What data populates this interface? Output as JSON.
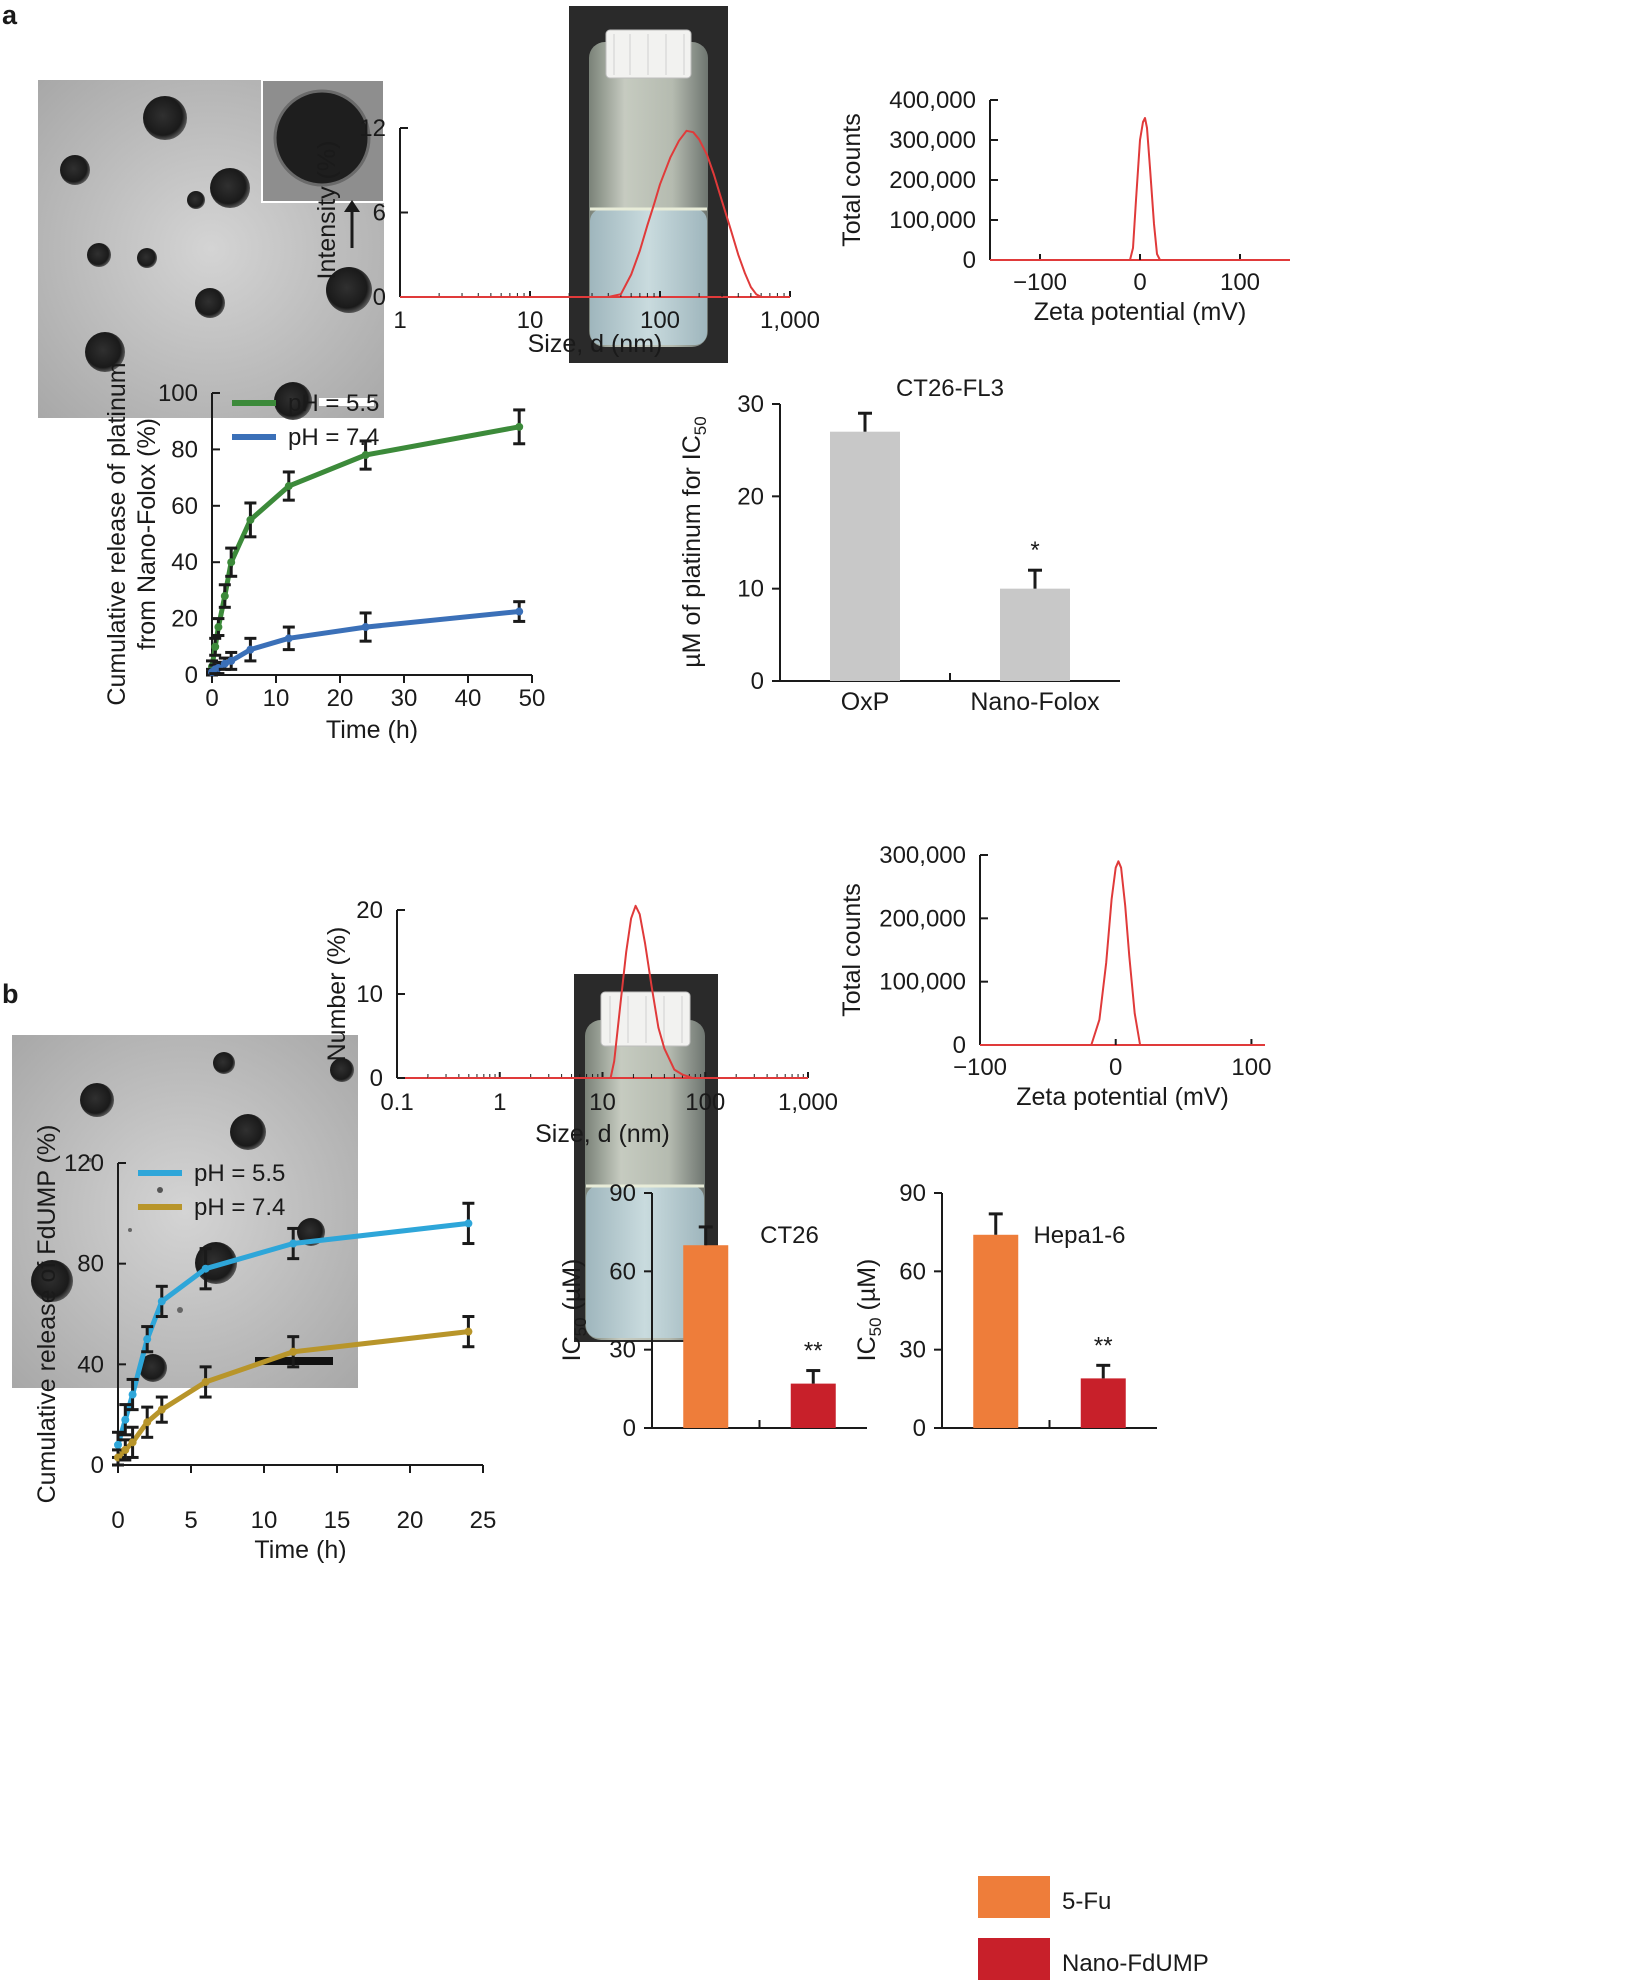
{
  "panels": {
    "a": "a",
    "b": "b"
  },
  "chart_data": [
    {
      "id": "a_size",
      "type": "line",
      "x_scale": "log",
      "xlabel": "Size, d (nm)",
      "ylabel": "Intensity (%)",
      "xlim": [
        1,
        1000
      ],
      "ylim": [
        0,
        12
      ],
      "x_ticks": [
        "1",
        "10",
        "100",
        "1,000"
      ],
      "y_ticks": [
        "0",
        "6",
        "12"
      ],
      "series": [
        {
          "x": [
            1,
            40,
            50,
            60,
            70,
            80,
            90,
            100,
            120,
            140,
            160,
            180,
            200,
            230,
            260,
            300,
            350,
            400,
            450,
            500,
            550,
            600,
            1000
          ],
          "y": [
            0,
            0,
            0.2,
            1.6,
            3.3,
            5.1,
            6.6,
            8.0,
            9.9,
            11.1,
            11.8,
            11.7,
            11.2,
            10.1,
            8.7,
            6.8,
            4.8,
            3.0,
            1.7,
            0.7,
            0.2,
            0,
            0
          ]
        }
      ]
    },
    {
      "id": "a_zeta",
      "type": "line",
      "xlabel": "Zeta potential (mV)",
      "ylabel": "Total counts",
      "xlim": [
        -150,
        150
      ],
      "ylim": [
        0,
        400000
      ],
      "x_ticks": [
        "−100",
        "0",
        "100"
      ],
      "y_ticks": [
        "0",
        "100,000",
        "200,000",
        "300,000",
        "400,000"
      ],
      "series": [
        {
          "x": [
            -150,
            -10,
            -7,
            -4,
            0,
            3,
            5,
            7,
            10,
            14,
            17,
            20,
            150
          ],
          "y": [
            0,
            0,
            30000,
            150000,
            300000,
            345000,
            355000,
            330000,
            230000,
            90000,
            15000,
            0,
            0
          ]
        }
      ]
    },
    {
      "id": "a_release",
      "type": "line",
      "xlabel": "Time (h)",
      "ylabel_lines": [
        "Cumulative release of platinum",
        "from Nano-Folox (%)"
      ],
      "xlim": [
        0,
        50
      ],
      "ylim": [
        0,
        100
      ],
      "x_ticks": [
        "0",
        "10",
        "20",
        "30",
        "40",
        "50"
      ],
      "y_ticks": [
        "0",
        "20",
        "40",
        "60",
        "80",
        "100"
      ],
      "series": [
        {
          "name": "pH = 5.5",
          "color": "#3c8a3a",
          "x": [
            0,
            0.5,
            1,
            2,
            3,
            6,
            12,
            24,
            48
          ],
          "y": [
            3,
            10,
            17,
            28,
            40,
            55,
            67,
            78,
            88
          ],
          "err": [
            2,
            3,
            3,
            4,
            5,
            6,
            5,
            5,
            6
          ]
        },
        {
          "name": "pH = 7.4",
          "color": "#3b70b8",
          "x": [
            0,
            0.5,
            1,
            2,
            3,
            6,
            12,
            24,
            48
          ],
          "y": [
            1,
            2,
            2.5,
            4,
            5,
            9,
            13,
            17,
            22.5
          ],
          "err": [
            1,
            1.5,
            2,
            2,
            3,
            4,
            4,
            5,
            3.5
          ]
        }
      ]
    },
    {
      "id": "a_ic50",
      "type": "bar",
      "title": "CT26-FL3",
      "ylabel": "µM of platinum for IC",
      "ylabel_sub": "50",
      "categories": [
        "OxP",
        "Nano-Folox"
      ],
      "values": [
        27,
        10
      ],
      "errors": [
        2,
        2
      ],
      "significance": [
        "",
        "*"
      ],
      "color": "#c8c8c8",
      "ylim": [
        0,
        30
      ],
      "y_ticks": [
        "0",
        "10",
        "20",
        "30"
      ]
    },
    {
      "id": "b_size",
      "type": "line",
      "x_scale": "log",
      "xlabel": "Size, d (nm)",
      "ylabel": "Number (%)",
      "xlim": [
        0.1,
        1000
      ],
      "ylim": [
        0,
        20
      ],
      "x_ticks": [
        "0.1",
        "1",
        "10",
        "100",
        "1,000"
      ],
      "y_ticks": [
        "0",
        "10",
        "20"
      ],
      "series": [
        {
          "x": [
            0.2,
            12,
            13,
            15,
            17,
            19,
            21,
            23,
            26,
            30,
            35,
            40,
            50,
            60,
            75,
            1000
          ],
          "y": [
            0,
            0,
            2,
            9,
            15,
            19,
            20.5,
            19.5,
            16,
            11,
            6,
            3.5,
            1,
            0.4,
            0,
            0
          ]
        }
      ]
    },
    {
      "id": "b_zeta",
      "type": "line",
      "xlabel": "Zeta potential (mV)",
      "ylabel": "Total counts",
      "xlim": [
        -100,
        110
      ],
      "ylim": [
        0,
        300000
      ],
      "x_ticks": [
        "−100",
        "0",
        "100"
      ],
      "y_ticks": [
        "0",
        "100,000",
        "200,000",
        "300,000"
      ],
      "series": [
        {
          "x": [
            -100,
            -18,
            -12,
            -7,
            -3,
            0,
            2,
            4,
            7,
            10,
            14,
            18,
            110
          ],
          "y": [
            0,
            0,
            40000,
            130000,
            230000,
            280000,
            290000,
            280000,
            220000,
            140000,
            50000,
            0,
            0
          ]
        }
      ]
    },
    {
      "id": "b_release",
      "type": "line",
      "xlabel": "Time (h)",
      "ylabel": "Cumulative release of FdUMP (%)",
      "xlim": [
        0,
        25
      ],
      "ylim": [
        0,
        120
      ],
      "x_ticks": [
        "0",
        "5",
        "10",
        "15",
        "20",
        "25"
      ],
      "y_ticks": [
        "0",
        "40",
        "80",
        "120"
      ],
      "series": [
        {
          "name": "pH = 5.5",
          "color": "#2ea6d9",
          "x": [
            0,
            0.5,
            1,
            2,
            3,
            6,
            12,
            24
          ],
          "y": [
            8,
            18,
            28,
            50,
            65,
            78,
            88,
            96
          ],
          "err": [
            5,
            6,
            6,
            5,
            6,
            8,
            6,
            8
          ]
        },
        {
          "name": "pH = 7.4",
          "color": "#b8952a",
          "x": [
            0,
            0.5,
            1,
            2,
            3,
            6,
            12,
            24
          ],
          "y": [
            3,
            6,
            9,
            17,
            22,
            33,
            45,
            53
          ],
          "err": [
            3,
            4,
            6,
            6,
            5,
            6,
            6,
            6
          ]
        }
      ]
    },
    {
      "id": "b_ic50_ct26",
      "type": "bar",
      "title": "CT26",
      "ylabel": "IC",
      "ylabel_sub": "50",
      "ylabel_tail": " (µM)",
      "categories": [
        "5-Fu",
        "Nano-FdUMP"
      ],
      "values": [
        70,
        17
      ],
      "errors": [
        7,
        5
      ],
      "significance": [
        "",
        "**"
      ],
      "colors": [
        "#ee7d3a",
        "#c8202a"
      ],
      "ylim": [
        0,
        90
      ],
      "y_ticks": [
        "0",
        "30",
        "60",
        "90"
      ]
    },
    {
      "id": "b_ic50_hepa",
      "type": "bar",
      "title": "Hepa1-6",
      "ylabel": "IC",
      "ylabel_sub": "50",
      "ylabel_tail": " (µM)",
      "categories": [
        "5-Fu",
        "Nano-FdUMP"
      ],
      "values": [
        74,
        19
      ],
      "errors": [
        8,
        5
      ],
      "significance": [
        "",
        "**"
      ],
      "colors": [
        "#ee7d3a",
        "#c8202a"
      ],
      "ylim": [
        0,
        90
      ],
      "y_ticks": [
        "0",
        "30",
        "60",
        "90"
      ]
    }
  ],
  "legend_b_bars": [
    {
      "label": "5-Fu",
      "color": "#ee7d3a"
    },
    {
      "label": "Nano-FdUMP",
      "color": "#c8202a"
    }
  ],
  "colors": {
    "dls_line": "#e03a3a",
    "bar_gray": "#c8c8c8",
    "axis": "#1a1a1a"
  }
}
